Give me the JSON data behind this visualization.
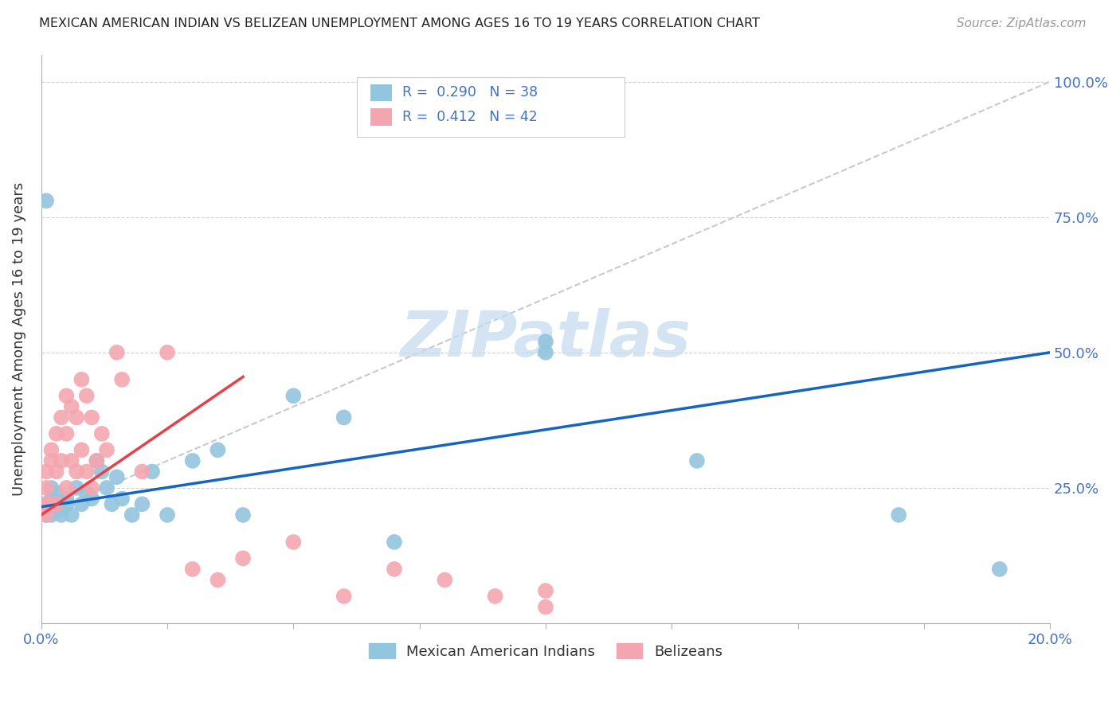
{
  "title": "MEXICAN AMERICAN INDIAN VS BELIZEAN UNEMPLOYMENT AMONG AGES 16 TO 19 YEARS CORRELATION CHART",
  "source": "Source: ZipAtlas.com",
  "ylabel": "Unemployment Among Ages 16 to 19 years",
  "xlim": [
    0.0,
    0.2
  ],
  "ylim": [
    0.0,
    1.05
  ],
  "ytick_positions": [
    0.0,
    0.25,
    0.5,
    0.75,
    1.0
  ],
  "ytick_labels": [
    "",
    "25.0%",
    "50.0%",
    "75.0%",
    "100.0%"
  ],
  "xtick_positions": [
    0.0,
    0.025,
    0.05,
    0.075,
    0.1,
    0.125,
    0.15,
    0.175,
    0.2
  ],
  "xtick_labels": [
    "0.0%",
    "",
    "",
    "",
    "",
    "",
    "",
    "",
    "20.0%"
  ],
  "blue_color": "#92C5DE",
  "pink_color": "#F4A6B0",
  "line_blue": "#1565C0",
  "line_pink": "#E8404A",
  "diagonal_color": "#C8C8D4",
  "watermark": "ZIPatlas",
  "blue_x": [
    0.001,
    0.001,
    0.001,
    0.002,
    0.002,
    0.002,
    0.003,
    0.003,
    0.004,
    0.004,
    0.005,
    0.005,
    0.006,
    0.007,
    0.008,
    0.009,
    0.01,
    0.011,
    0.012,
    0.013,
    0.014,
    0.015,
    0.016,
    0.018,
    0.02,
    0.022,
    0.025,
    0.03,
    0.035,
    0.04,
    0.05,
    0.06,
    0.07,
    0.1,
    0.1,
    0.13,
    0.17,
    0.19
  ],
  "blue_y": [
    0.2,
    0.22,
    0.78,
    0.23,
    0.25,
    0.2,
    0.22,
    0.24,
    0.21,
    0.2,
    0.23,
    0.22,
    0.2,
    0.25,
    0.22,
    0.24,
    0.23,
    0.3,
    0.28,
    0.25,
    0.22,
    0.27,
    0.23,
    0.2,
    0.22,
    0.28,
    0.2,
    0.3,
    0.32,
    0.2,
    0.42,
    0.38,
    0.15,
    0.52,
    0.5,
    0.3,
    0.2,
    0.1
  ],
  "pink_x": [
    0.001,
    0.001,
    0.001,
    0.001,
    0.002,
    0.002,
    0.002,
    0.003,
    0.003,
    0.003,
    0.004,
    0.004,
    0.005,
    0.005,
    0.005,
    0.006,
    0.006,
    0.007,
    0.007,
    0.008,
    0.008,
    0.009,
    0.009,
    0.01,
    0.01,
    0.011,
    0.012,
    0.013,
    0.015,
    0.016,
    0.02,
    0.025,
    0.03,
    0.035,
    0.04,
    0.05,
    0.06,
    0.07,
    0.08,
    0.09,
    0.1,
    0.1
  ],
  "pink_y": [
    0.2,
    0.22,
    0.25,
    0.28,
    0.22,
    0.3,
    0.32,
    0.28,
    0.35,
    0.22,
    0.38,
    0.3,
    0.42,
    0.35,
    0.25,
    0.4,
    0.3,
    0.38,
    0.28,
    0.45,
    0.32,
    0.42,
    0.28,
    0.38,
    0.25,
    0.3,
    0.35,
    0.32,
    0.5,
    0.45,
    0.28,
    0.5,
    0.1,
    0.08,
    0.12,
    0.15,
    0.05,
    0.1,
    0.08,
    0.05,
    0.03,
    0.06
  ],
  "blue_line_x0": 0.0,
  "blue_line_x1": 0.2,
  "blue_line_y0": 0.215,
  "blue_line_y1": 0.5,
  "pink_line_x0": 0.0,
  "pink_line_x1": 0.04,
  "pink_line_y0": 0.2,
  "pink_line_y1": 0.455
}
